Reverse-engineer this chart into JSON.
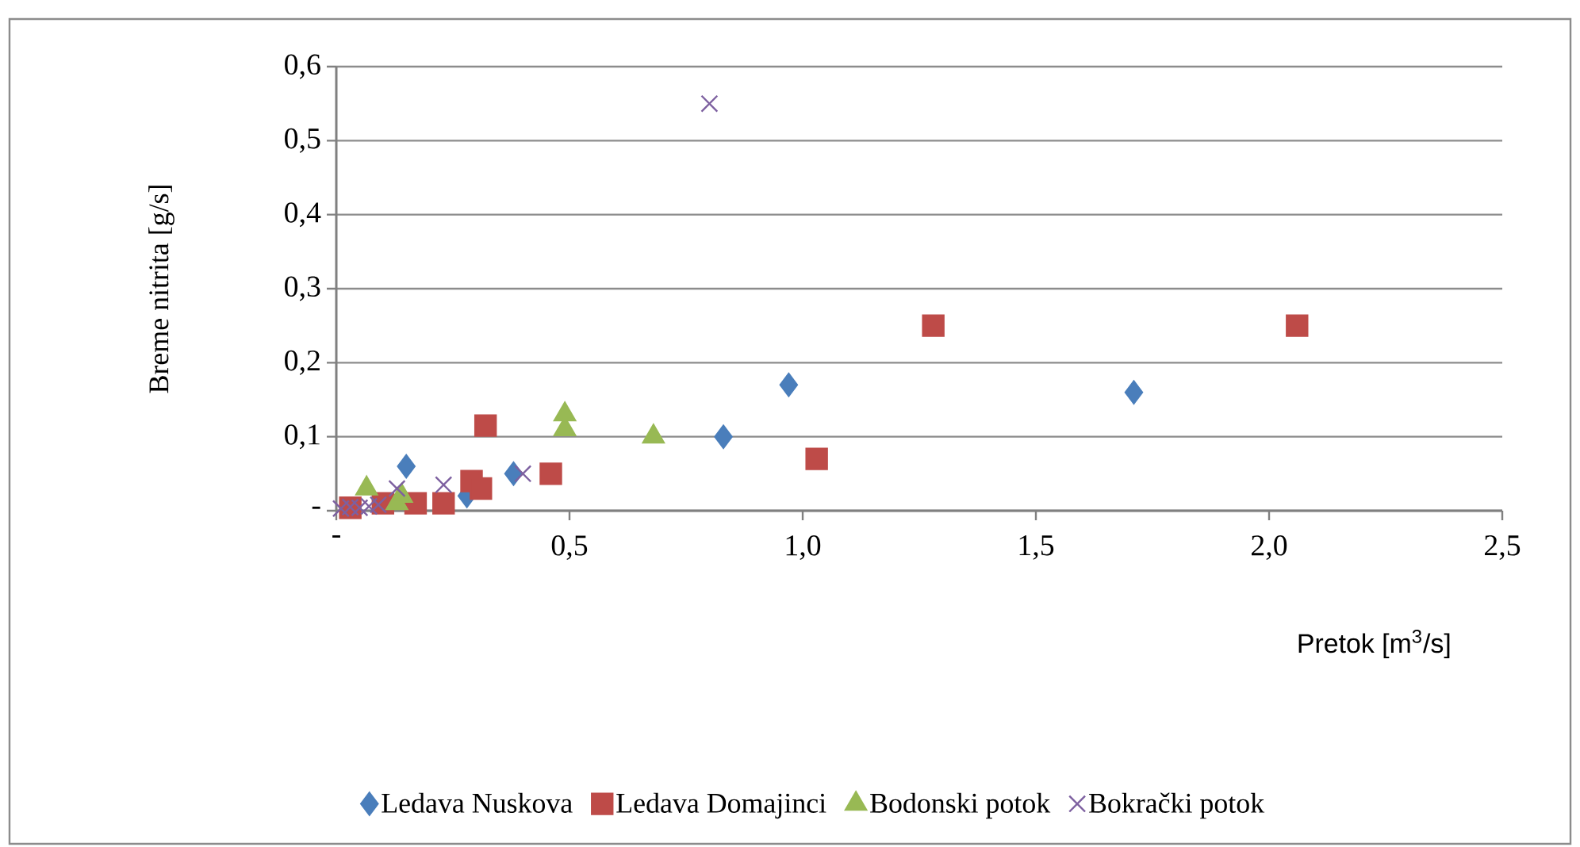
{
  "chart_data": {
    "type": "scatter",
    "xlabel": "Pretok [m$^{3}$/s]",
    "ylabel": "Breme nitrita [g/s]",
    "xlim": [
      0,
      2.5
    ],
    "ylim": [
      0,
      0.6
    ],
    "xticks": [
      {
        "value": 0,
        "label": "-"
      },
      {
        "value": 0.5,
        "label": "0,5"
      },
      {
        "value": 1.0,
        "label": "1,0"
      },
      {
        "value": 1.5,
        "label": "1,5"
      },
      {
        "value": 2.0,
        "label": "2,0"
      },
      {
        "value": 2.5,
        "label": "2,5"
      }
    ],
    "yticks": [
      {
        "value": 0,
        "label": "-"
      },
      {
        "value": 0.1,
        "label": "0,1"
      },
      {
        "value": 0.2,
        "label": "0,2"
      },
      {
        "value": 0.3,
        "label": "0,3"
      },
      {
        "value": 0.4,
        "label": "0,4"
      },
      {
        "value": 0.5,
        "label": "0,5"
      },
      {
        "value": 0.6,
        "label": "0,6"
      }
    ],
    "grid": "y",
    "legend": "bottom",
    "series": [
      {
        "name": "Ledava Nuskova",
        "color": "#4a7ebb",
        "marker": "diamond",
        "x": [
          0.15,
          0.28,
          0.38,
          0.83,
          0.97,
          1.71
        ],
        "values": [
          0.06,
          0.02,
          0.05,
          0.1,
          0.17,
          0.16
        ]
      },
      {
        "name": "Ledava Domajinci",
        "color": "#be4b48",
        "marker": "square",
        "x": [
          0.03,
          0.1,
          0.17,
          0.23,
          0.29,
          0.31,
          0.32,
          0.46,
          1.03,
          1.28,
          2.06
        ],
        "values": [
          0.004,
          0.01,
          0.01,
          0.01,
          0.04,
          0.03,
          0.115,
          0.05,
          0.07,
          0.25,
          0.25
        ]
      },
      {
        "name": "Bodonski potok",
        "color": "#98b954",
        "marker": "triangle",
        "x": [
          0.065,
          0.13,
          0.14,
          0.49,
          0.49,
          0.68
        ],
        "values": [
          0.03,
          0.01,
          0.02,
          0.11,
          0.13,
          0.1
        ]
      },
      {
        "name": "Bokrački potok",
        "color": "#7d60a0",
        "marker": "cross",
        "x": [
          0.01,
          0.03,
          0.05,
          0.07,
          0.09,
          0.13,
          0.23,
          0.4,
          0.8
        ],
        "values": [
          0.003,
          0.005,
          0.004,
          0.006,
          0.008,
          0.03,
          0.035,
          0.05,
          0.55
        ]
      }
    ]
  }
}
